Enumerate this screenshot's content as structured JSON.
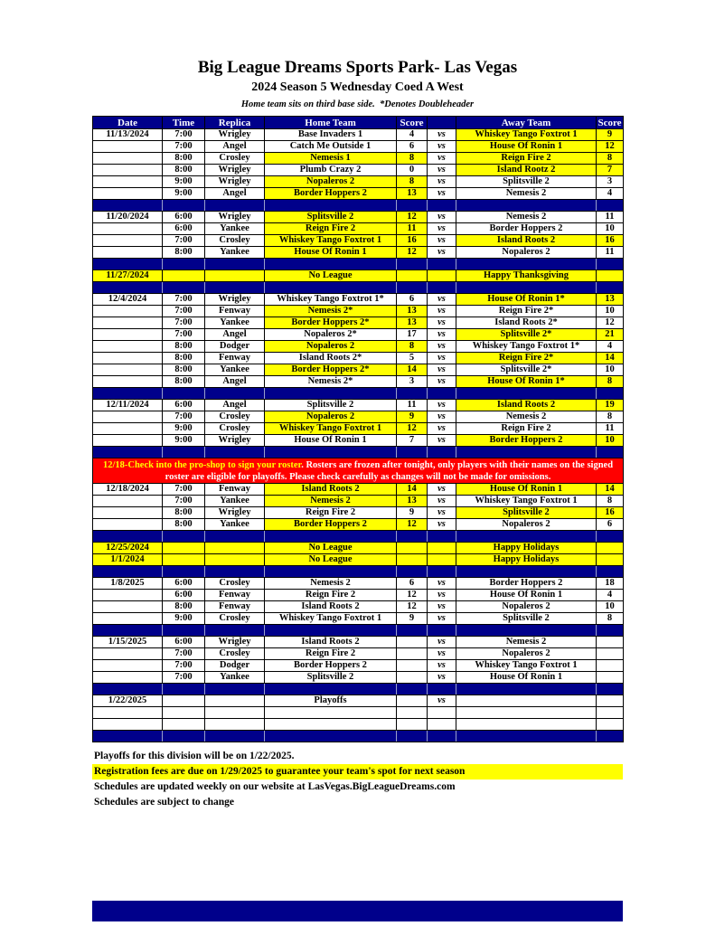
{
  "header": {
    "title": "Big League Dreams Sports Park- Las Vegas",
    "subtitle": "2024 Season 5 Wednesday Coed A West",
    "tagline": "Home team sits on third base side.  *Denotes Doubleheader"
  },
  "colors": {
    "navy": "#00008B",
    "highlight_yellow": "#FFFF00",
    "notice_red": "#FF0000",
    "highlight_text_navy": "#00008B"
  },
  "table": {
    "columns": [
      "Date",
      "Time",
      "Replica",
      "Home Team",
      "Score",
      "",
      "Away Team",
      "Score"
    ],
    "vs_label": "vs",
    "rows": [
      {
        "t": "game",
        "date": "11/13/2024",
        "time": "7:00",
        "rep": "Wrigley",
        "home": "Base Invaders 1",
        "hs": "4",
        "away": "Whiskey Tango Foxtrot 1",
        "as": "9",
        "hl": "away"
      },
      {
        "t": "game",
        "date": "",
        "time": "7:00",
        "rep": "Angel",
        "home": "Catch Me Outside 1",
        "hs": "6",
        "away": "House Of Ronin 1",
        "as": "12",
        "hl": "away"
      },
      {
        "t": "game",
        "date": "",
        "time": "8:00",
        "rep": "Crosley",
        "home": "Nemesis 1",
        "hs": "8",
        "away": "Reign Fire 2",
        "as": "8",
        "hl": "both"
      },
      {
        "t": "game",
        "date": "",
        "time": "8:00",
        "rep": "Wrigley",
        "home": "Plumb Crazy 2",
        "hs": "0",
        "away": "Island Rootz 2",
        "as": "7",
        "hl": "away"
      },
      {
        "t": "game",
        "date": "",
        "time": "9:00",
        "rep": "Wrigley",
        "home": "Nopaleros 2",
        "hs": "8",
        "away": "Splitsville 2",
        "as": "3",
        "hl": "home"
      },
      {
        "t": "game",
        "date": "",
        "time": "9:00",
        "rep": "Angel",
        "home": "Border Hoppers 2",
        "hs": "13",
        "away": "Nemesis 2",
        "as": "4",
        "hl": "home"
      },
      {
        "t": "sep"
      },
      {
        "t": "game",
        "date": "11/20/2024",
        "time": "6:00",
        "rep": "Wrigley",
        "home": "Splitsville 2",
        "hs": "12",
        "away": "Nemesis 2",
        "as": "11",
        "hl": "home"
      },
      {
        "t": "game",
        "date": "",
        "time": "6:00",
        "rep": "Yankee",
        "home": "Reign Fire 2",
        "hs": "11",
        "away": "Border Hoppers 2",
        "as": "10",
        "hl": "home"
      },
      {
        "t": "game",
        "date": "",
        "time": "7:00",
        "rep": "Crosley",
        "home": "Whiskey Tango Foxtrot 1",
        "hs": "16",
        "away": "Island Roots 2",
        "as": "16",
        "hl": "both"
      },
      {
        "t": "game",
        "date": "",
        "time": "8:00",
        "rep": "Yankee",
        "home": "House Of Ronin 1",
        "hs": "12",
        "away": "Nopaleros 2",
        "as": "11",
        "hl": "home"
      },
      {
        "t": "sep"
      },
      {
        "t": "holiday",
        "date": "11/27/2024",
        "home": "No League",
        "away": "Happy Thanksgiving"
      },
      {
        "t": "sep"
      },
      {
        "t": "game",
        "date": "12/4/2024",
        "time": "7:00",
        "rep": "Wrigley",
        "home": "Whiskey Tango Foxtrot 1*",
        "hs": "6",
        "away": "House Of Ronin 1*",
        "as": "13",
        "hl": "away"
      },
      {
        "t": "game",
        "date": "",
        "time": "7:00",
        "rep": "Fenway",
        "home": "Nemesis 2*",
        "hs": "13",
        "away": "Reign Fire 2*",
        "as": "10",
        "hl": "home"
      },
      {
        "t": "game",
        "date": "",
        "time": "7:00",
        "rep": "Yankee",
        "home": "Border Hoppers 2*",
        "hs": "13",
        "away": "Island Roots 2*",
        "as": "12",
        "hl": "home"
      },
      {
        "t": "game",
        "date": "",
        "time": "7:00",
        "rep": "Angel",
        "home": "Nopaleros 2*",
        "hs": "17",
        "away": "Splitsville 2*",
        "as": "21",
        "hl": "away"
      },
      {
        "t": "game",
        "date": "",
        "time": "8:00",
        "rep": "Dodger",
        "home": "Nopaleros 2",
        "hs": "8",
        "away": "Whiskey Tango Foxtrot 1*",
        "as": "4",
        "hl": "home"
      },
      {
        "t": "game",
        "date": "",
        "time": "8:00",
        "rep": "Fenway",
        "home": "Island Roots 2*",
        "hs": "5",
        "away": "Reign Fire 2*",
        "as": "14",
        "hl": "away"
      },
      {
        "t": "game",
        "date": "",
        "time": "8:00",
        "rep": "Yankee",
        "home": "Border Hoppers 2*",
        "hs": "14",
        "away": "Splitsville 2*",
        "as": "10",
        "hl": "home"
      },
      {
        "t": "game",
        "date": "",
        "time": "8:00",
        "rep": "Angel",
        "home": "Nemesis 2*",
        "hs": "3",
        "away": "House Of Ronin 1*",
        "as": "8",
        "hl": "away"
      },
      {
        "t": "sep"
      },
      {
        "t": "game",
        "date": "12/11/2024",
        "time": "6:00",
        "rep": "Angel",
        "home": "Splitsville 2",
        "hs": "11",
        "away": "Island Roots 2",
        "as": "19",
        "hl": "away"
      },
      {
        "t": "game",
        "date": "",
        "time": "7:00",
        "rep": "Crosley",
        "home": "Nopaleros 2",
        "hs": "9",
        "away": "Nemesis 2",
        "as": "8",
        "hl": "home"
      },
      {
        "t": "game",
        "date": "",
        "time": "9:00",
        "rep": "Crosley",
        "home": "Whiskey Tango Foxtrot 1",
        "hs": "12",
        "away": "Reign Fire 2",
        "as": "11",
        "hl": "home"
      },
      {
        "t": "game",
        "date": "",
        "time": "9:00",
        "rep": "Wrigley",
        "home": "House Of Ronin 1",
        "hs": "7",
        "away": "Border Hoppers 2",
        "as": "10",
        "hl": "away"
      },
      {
        "t": "sep"
      },
      {
        "t": "notice"
      },
      {
        "t": "game",
        "date": "12/18/2024",
        "time": "7:00",
        "rep": "Fenway",
        "home": "Island Roots 2",
        "hs": "14",
        "away": "House Of Ronin 1",
        "as": "14",
        "hl": "both"
      },
      {
        "t": "game",
        "date": "",
        "time": "7:00",
        "rep": "Yankee",
        "home": "Nemesis 2",
        "hs": "13",
        "away": "Whiskey Tango Foxtrot 1",
        "as": "8",
        "hl": "home"
      },
      {
        "t": "game",
        "date": "",
        "time": "8:00",
        "rep": "Wrigley",
        "home": "Reign Fire 2",
        "hs": "9",
        "away": "Splitsville 2",
        "as": "16",
        "hl": "away"
      },
      {
        "t": "game",
        "date": "",
        "time": "8:00",
        "rep": "Yankee",
        "home": "Border Hoppers 2",
        "hs": "12",
        "away": "Nopaleros 2",
        "as": "6",
        "hl": "home"
      },
      {
        "t": "sep"
      },
      {
        "t": "holiday",
        "date": "12/25/2024",
        "home": "No League",
        "away": "Happy Holidays"
      },
      {
        "t": "holiday",
        "date": "1/1/2024",
        "home": "No League",
        "away": "Happy Holidays"
      },
      {
        "t": "sep"
      },
      {
        "t": "game",
        "date": "1/8/2025",
        "time": "6:00",
        "rep": "Crosley",
        "home": "Nemesis 2",
        "hs": "6",
        "away": "Border Hoppers 2",
        "as": "18",
        "hl": "none"
      },
      {
        "t": "game",
        "date": "",
        "time": "6:00",
        "rep": "Fenway",
        "home": "Reign Fire 2",
        "hs": "12",
        "away": "House Of Ronin 1",
        "as": "4",
        "hl": "none"
      },
      {
        "t": "game",
        "date": "",
        "time": "8:00",
        "rep": "Fenway",
        "home": "Island Roots 2",
        "hs": "12",
        "away": "Nopaleros 2",
        "as": "10",
        "hl": "none"
      },
      {
        "t": "game",
        "date": "",
        "time": "9:00",
        "rep": "Crosley",
        "home": "Whiskey Tango Foxtrot 1",
        "hs": "9",
        "away": "Splitsville 2",
        "as": "8",
        "hl": "none"
      },
      {
        "t": "sep"
      },
      {
        "t": "game",
        "date": "1/15/2025",
        "time": "6:00",
        "rep": "Wrigley",
        "home": "Island Roots 2",
        "hs": "",
        "away": "Nemesis 2",
        "as": "",
        "hl": "none"
      },
      {
        "t": "game",
        "date": "",
        "time": "7:00",
        "rep": "Crosley",
        "home": "Reign Fire 2",
        "hs": "",
        "away": "Nopaleros 2",
        "as": "",
        "hl": "none"
      },
      {
        "t": "game",
        "date": "",
        "time": "7:00",
        "rep": "Dodger",
        "home": "Border Hoppers 2",
        "hs": "",
        "away": "Whiskey Tango Foxtrot 1",
        "as": "",
        "hl": "none"
      },
      {
        "t": "game",
        "date": "",
        "time": "7:00",
        "rep": "Yankee",
        "home": "Splitsville 2",
        "hs": "",
        "away": "House Of Ronin 1",
        "as": "",
        "hl": "none"
      },
      {
        "t": "sep"
      },
      {
        "t": "playoffs",
        "date": "1/22/2025",
        "home": "Playoffs"
      },
      {
        "t": "empty"
      },
      {
        "t": "empty"
      },
      {
        "t": "sep"
      }
    ]
  },
  "notice": {
    "highlight_text": "12/18-Check into the pro-shop to sign your roster",
    "body_text": ". Rosters are frozen after tonight, only players with their names on the signed roster are eligible for playoffs. Please check carefully as changes will not be made for omissions."
  },
  "footer": {
    "lines": [
      {
        "text": "Playoffs for this division will be on 1/22/2025.",
        "highlight": false
      },
      {
        "text": "Registration fees are due on 1/29/2025 to guarantee your team's spot for next season",
        "highlight": true
      },
      {
        "text": "Schedules are updated weekly on our website at LasVegas.BigLeagueDreams.com",
        "highlight": false
      },
      {
        "text": "Schedules are subject to change",
        "highlight": false
      }
    ]
  }
}
